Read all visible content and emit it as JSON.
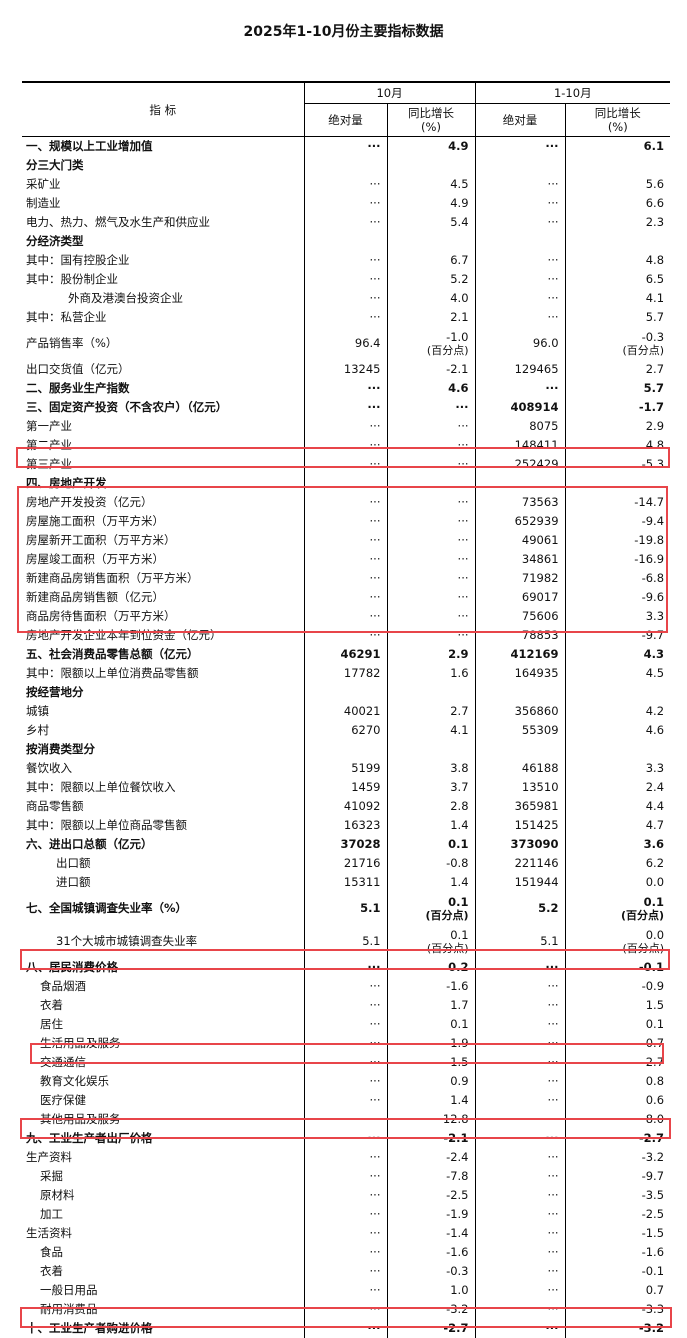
{
  "title": "2025年1-10月份主要指标数据",
  "header": {
    "indicator": "指  标",
    "period1": "10月",
    "period2": "1-10月",
    "absolute": "绝对量",
    "growth": "同比增长",
    "growth_unit": "(%)"
  },
  "highlight_color": "#e8454a",
  "rows": [
    {
      "label": "一、规模以上工业增加值",
      "c1": "···",
      "c2": "4.9",
      "c3": "···",
      "c4": "6.1",
      "bold": true,
      "level": 0
    },
    {
      "label": "分三大门类",
      "c1": "",
      "c2": "",
      "c3": "",
      "c4": "",
      "bold": true,
      "level": 0
    },
    {
      "label": "采矿业",
      "c1": "···",
      "c2": "4.5",
      "c3": "···",
      "c4": "5.6",
      "level": 0
    },
    {
      "label": "制造业",
      "c1": "···",
      "c2": "4.9",
      "c3": "···",
      "c4": "6.6",
      "level": 0
    },
    {
      "label": "电力、热力、燃气及水生产和供应业",
      "c1": "···",
      "c2": "5.4",
      "c3": "···",
      "c4": "2.3",
      "level": 0
    },
    {
      "label": "分经济类型",
      "c1": "",
      "c2": "",
      "c3": "",
      "c4": "",
      "bold": true,
      "level": 0
    },
    {
      "label": "其中：国有控股企业",
      "c1": "···",
      "c2": "6.7",
      "c3": "···",
      "c4": "4.8",
      "level": 0
    },
    {
      "label": "其中：股份制企业",
      "c1": "···",
      "c2": "5.2",
      "c3": "···",
      "c4": "6.5",
      "level": 0
    },
    {
      "label": "外商及港澳台投资企业",
      "c1": "···",
      "c2": "4.0",
      "c3": "···",
      "c4": "4.1",
      "level": 3
    },
    {
      "label": "其中：私营企业",
      "c1": "···",
      "c2": "2.1",
      "c3": "···",
      "c4": "5.7",
      "level": 0
    },
    {
      "label": "产品销售率（%）",
      "c1": "96.4",
      "c2": "-1.0",
      "c2_note": "(百分点)",
      "c3": "96.0",
      "c4": "-0.3",
      "c4_note": "(百分点)",
      "level": 0
    },
    {
      "label": "出口交货值（亿元）",
      "c1": "13245",
      "c2": "-2.1",
      "c3": "129465",
      "c4": "2.7",
      "level": 0
    },
    {
      "label": "二、服务业生产指数",
      "c1": "···",
      "c2": "4.6",
      "c3": "···",
      "c4": "5.7",
      "bold": true,
      "level": 0
    },
    {
      "label": "三、固定资产投资（不含农户）（亿元）",
      "c1": "···",
      "c2": "···",
      "c3": "408914",
      "c4": "-1.7",
      "bold": true,
      "level": 0
    },
    {
      "label": "第一产业",
      "c1": "···",
      "c2": "···",
      "c3": "8075",
      "c4": "2.9",
      "level": 0
    },
    {
      "label": "第二产业",
      "c1": "···",
      "c2": "···",
      "c3": "148411",
      "c4": "4.8",
      "level": 0
    },
    {
      "label": "第三产业",
      "c1": "···",
      "c2": "···",
      "c3": "252429",
      "c4": "-5.3",
      "level": 0
    },
    {
      "label": "四、房地产开发",
      "c1": "",
      "c2": "",
      "c3": "",
      "c4": "",
      "bold": true,
      "level": 0
    },
    {
      "label": "房地产开发投资（亿元）",
      "c1": "···",
      "c2": "···",
      "c3": "73563",
      "c4": "-14.7",
      "level": 0
    },
    {
      "label": "房屋施工面积（万平方米）",
      "c1": "···",
      "c2": "···",
      "c3": "652939",
      "c4": "-9.4",
      "level": 0
    },
    {
      "label": "房屋新开工面积（万平方米）",
      "c1": "···",
      "c2": "···",
      "c3": "49061",
      "c4": "-19.8",
      "level": 0
    },
    {
      "label": "房屋竣工面积（万平方米）",
      "c1": "···",
      "c2": "···",
      "c3": "34861",
      "c4": "-16.9",
      "level": 0
    },
    {
      "label": "新建商品房销售面积（万平方米）",
      "c1": "···",
      "c2": "···",
      "c3": "71982",
      "c4": "-6.8",
      "level": 0
    },
    {
      "label": "新建商品房销售额（亿元）",
      "c1": "···",
      "c2": "···",
      "c3": "69017",
      "c4": "-9.6",
      "level": 0
    },
    {
      "label": "商品房待售面积（万平方米）",
      "c1": "···",
      "c2": "···",
      "c3": "75606",
      "c4": "3.3",
      "level": 0
    },
    {
      "label": "房地产开发企业本年到位资金（亿元）",
      "c1": "···",
      "c2": "···",
      "c3": "78853",
      "c4": "-9.7",
      "level": 0
    },
    {
      "label": "五、社会消费品零售总额（亿元）",
      "c1": "46291",
      "c2": "2.9",
      "c3": "412169",
      "c4": "4.3",
      "bold": true,
      "level": 0
    },
    {
      "label": "其中：限额以上单位消费品零售额",
      "c1": "17782",
      "c2": "1.6",
      "c3": "164935",
      "c4": "4.5",
      "level": 0
    },
    {
      "label": "按经营地分",
      "c1": "",
      "c2": "",
      "c3": "",
      "c4": "",
      "bold": true,
      "level": 0
    },
    {
      "label": "城镇",
      "c1": "40021",
      "c2": "2.7",
      "c3": "356860",
      "c4": "4.2",
      "level": 0
    },
    {
      "label": "乡村",
      "c1": "6270",
      "c2": "4.1",
      "c3": "55309",
      "c4": "4.6",
      "level": 0
    },
    {
      "label": "按消费类型分",
      "c1": "",
      "c2": "",
      "c3": "",
      "c4": "",
      "bold": true,
      "level": 0
    },
    {
      "label": "餐饮收入",
      "c1": "5199",
      "c2": "3.8",
      "c3": "46188",
      "c4": "3.3",
      "level": 0
    },
    {
      "label": "其中：限额以上单位餐饮收入",
      "c1": "1459",
      "c2": "3.7",
      "c3": "13510",
      "c4": "2.4",
      "level": 0
    },
    {
      "label": "商品零售额",
      "c1": "41092",
      "c2": "2.8",
      "c3": "365981",
      "c4": "4.4",
      "level": 0
    },
    {
      "label": "其中：限额以上单位商品零售额",
      "c1": "16323",
      "c2": "1.4",
      "c3": "151425",
      "c4": "4.7",
      "level": 0
    },
    {
      "label": "六、进出口总额（亿元）",
      "c1": "37028",
      "c2": "0.1",
      "c3": "373090",
      "c4": "3.6",
      "bold": true,
      "level": 0
    },
    {
      "label": "出口额",
      "c1": "21716",
      "c2": "-0.8",
      "c3": "221146",
      "c4": "6.2",
      "level": 2
    },
    {
      "label": "进口额",
      "c1": "15311",
      "c2": "1.4",
      "c3": "151944",
      "c4": "0.0",
      "level": 2
    },
    {
      "label": "七、全国城镇调查失业率（%）",
      "c1": "5.1",
      "c2": "0.1",
      "c2_note": "(百分点)",
      "c3": "5.2",
      "c4": "0.1",
      "c4_note": "(百分点)",
      "bold": true,
      "level": 0
    },
    {
      "label": "31个大城市城镇调查失业率",
      "c1": "5.1",
      "c2": "0.1",
      "c2_note": "(百分点)",
      "c3": "5.1",
      "c4": "0.0",
      "c4_note": "(百分点)",
      "level": 2
    },
    {
      "label": "八、居民消费价格",
      "c1": "···",
      "c2": "0.2",
      "c3": "···",
      "c4": "-0.1",
      "bold": true,
      "level": 0
    },
    {
      "label": "食品烟酒",
      "c1": "···",
      "c2": "-1.6",
      "c3": "···",
      "c4": "-0.9",
      "level": 1
    },
    {
      "label": "衣着",
      "c1": "···",
      "c2": "1.7",
      "c3": "···",
      "c4": "1.5",
      "level": 1
    },
    {
      "label": "居住",
      "c1": "···",
      "c2": "0.1",
      "c3": "···",
      "c4": "0.1",
      "level": 1
    },
    {
      "label": "生活用品及服务",
      "c1": "···",
      "c2": "1.9",
      "c3": "···",
      "c4": "0.7",
      "level": 1
    },
    {
      "label": "交通通信",
      "c1": "···",
      "c2": "-1.5",
      "c3": "···",
      "c4": "-2.7",
      "level": 1
    },
    {
      "label": "教育文化娱乐",
      "c1": "···",
      "c2": "0.9",
      "c3": "···",
      "c4": "0.8",
      "level": 1
    },
    {
      "label": "医疗保健",
      "c1": "···",
      "c2": "1.4",
      "c3": "···",
      "c4": "0.6",
      "level": 1
    },
    {
      "label": "其他用品及服务",
      "c1": "···",
      "c2": "12.8",
      "c3": "···",
      "c4": "8.0",
      "level": 1
    },
    {
      "label": "九、工业生产者出厂价格",
      "c1": "···",
      "c2": "-2.1",
      "c3": "···",
      "c4": "-2.7",
      "bold": true,
      "level": 0
    },
    {
      "label": "生产资料",
      "c1": "···",
      "c2": "-2.4",
      "c3": "···",
      "c4": "-3.2",
      "level": 0
    },
    {
      "label": "采掘",
      "c1": "···",
      "c2": "-7.8",
      "c3": "···",
      "c4": "-9.7",
      "level": 1
    },
    {
      "label": "原材料",
      "c1": "···",
      "c2": "-2.5",
      "c3": "···",
      "c4": "-3.5",
      "level": 1
    },
    {
      "label": "加工",
      "c1": "···",
      "c2": "-1.9",
      "c3": "···",
      "c4": "-2.5",
      "level": 1
    },
    {
      "label": "生活资料",
      "c1": "···",
      "c2": "-1.4",
      "c3": "···",
      "c4": "-1.5",
      "level": 0
    },
    {
      "label": "食品",
      "c1": "···",
      "c2": "-1.6",
      "c3": "···",
      "c4": "-1.6",
      "level": 1
    },
    {
      "label": "衣着",
      "c1": "···",
      "c2": "-0.3",
      "c3": "···",
      "c4": "-0.1",
      "level": 1
    },
    {
      "label": "一般日用品",
      "c1": "···",
      "c2": "1.0",
      "c3": "···",
      "c4": "0.7",
      "level": 1
    },
    {
      "label": "耐用消费品",
      "c1": "···",
      "c2": "-3.2",
      "c3": "···",
      "c4": "-3.3",
      "level": 1
    },
    {
      "label": "十、工业生产者购进价格",
      "c1": "···",
      "c2": "-2.7",
      "c3": "···",
      "c4": "-3.2",
      "bold": true,
      "level": 0
    }
  ]
}
